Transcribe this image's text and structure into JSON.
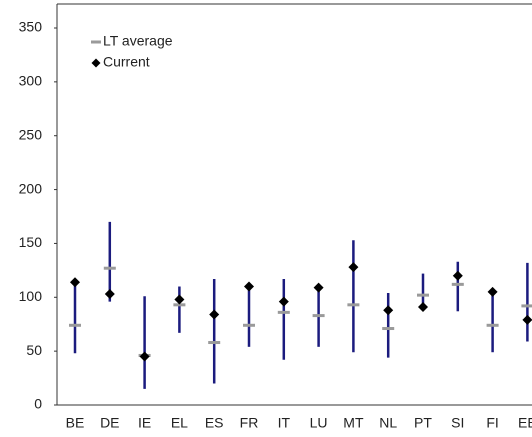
{
  "chart_data": {
    "type": "range",
    "categories": [
      "BE",
      "DE",
      "IE",
      "EL",
      "ES",
      "FR",
      "IT",
      "LU",
      "MT",
      "NL",
      "PT",
      "SI",
      "FI",
      "EE"
    ],
    "range_low": [
      48,
      96,
      15,
      67,
      20,
      54,
      42,
      54,
      49,
      44,
      90,
      87,
      49,
      59
    ],
    "range_high": [
      115,
      170,
      101,
      110,
      117,
      110,
      117,
      109,
      153,
      104,
      122,
      133,
      108,
      132
    ],
    "range_color": "#1b1b7e",
    "series": [
      {
        "name": "LT average",
        "color": "#9a9a9a",
        "values": [
          74,
          127,
          46,
          93,
          58,
          74,
          86,
          83,
          93,
          71,
          102,
          112,
          74,
          92
        ]
      },
      {
        "name": "Current",
        "color": "#000000",
        "values": [
          114,
          103,
          45,
          98,
          84,
          110,
          96,
          109,
          128,
          88,
          91,
          120,
          105,
          79
        ]
      }
    ],
    "ylim": [
      0,
      350
    ],
    "yticks": [
      0,
      50,
      100,
      150,
      200,
      250,
      300,
      350
    ]
  }
}
